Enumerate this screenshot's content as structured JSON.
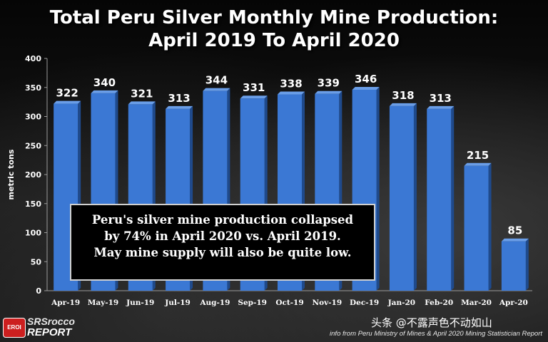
{
  "title_line1": "Total Peru Silver Monthly Mine Production:",
  "title_line2": "April 2019 To April 2020",
  "callout": {
    "line1": "Peru's silver mine production collapsed",
    "line2": "by 74% in April 2020 vs. April 2019.",
    "line3": "May mine supply will also be quite low."
  },
  "logo": {
    "badge": "EROI",
    "top": "SRSrocco",
    "bottom": "REPORT"
  },
  "source": "info from Peru Ministry of Mines & April 2020 Mining Statistician Report",
  "watermark": "头条 @不露声色不动如山",
  "colors": {
    "bar": "#3b78d4",
    "bar_side": "#1f4a8c",
    "bar_top": "#6a9ee8",
    "text": "#ffffff",
    "background": "#101010"
  },
  "chart_data": {
    "type": "bar",
    "title": "Total Peru Silver Monthly Mine Production: April 2019 To April 2020",
    "categories": [
      "Apr-19",
      "May-19",
      "Jun-19",
      "Jul-19",
      "Aug-19",
      "Sep-19",
      "Oct-19",
      "Nov-19",
      "Dec-19",
      "Jan-20",
      "Feb-20",
      "Mar-20",
      "Apr-20"
    ],
    "values": [
      322,
      340,
      321,
      313,
      344,
      331,
      338,
      339,
      346,
      318,
      313,
      215,
      85
    ],
    "xlabel": "",
    "ylabel": "metric tons",
    "ylim": [
      0,
      400
    ],
    "yticks": [
      0,
      50,
      100,
      150,
      200,
      250,
      300,
      350,
      400
    ],
    "grid": false,
    "data_labels": true
  }
}
